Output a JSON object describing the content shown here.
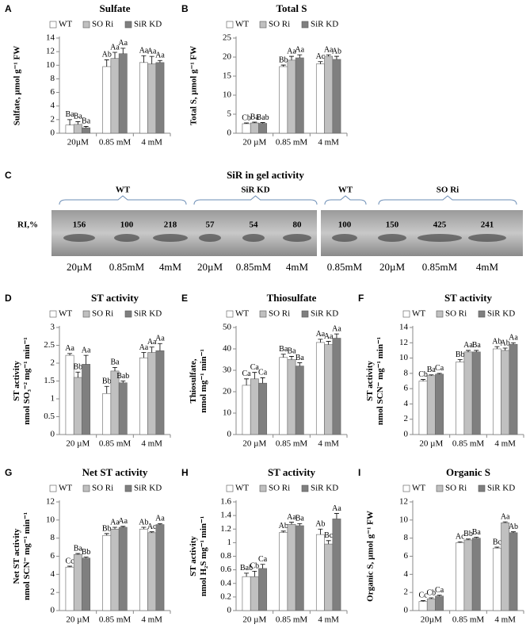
{
  "chart_data": [
    {
      "type": "bar",
      "panel": "A",
      "title": "Sulfate",
      "ylabel": "Sulfate, µmol g⁻¹ FW",
      "categories": [
        "20µM",
        "0.85 mM",
        "4 mM"
      ],
      "ylim": [
        0,
        14
      ],
      "yticks": [
        0,
        2,
        4,
        6,
        8,
        10,
        12,
        14
      ],
      "series": [
        {
          "name": "WT",
          "color": "#ffffff",
          "values": [
            1.2,
            9.8,
            10.4
          ],
          "errors": [
            0.8,
            1.0,
            1.0
          ],
          "letters": [
            "Ba",
            "Ab",
            "Aa"
          ]
        },
        {
          "name": "SO Ri",
          "color": "#c0c0c0",
          "values": [
            1.3,
            11.0,
            10.2
          ],
          "errors": [
            0.4,
            0.9,
            1.1
          ],
          "letters": [
            "Ba",
            "Aa",
            "Aa"
          ]
        },
        {
          "name": "SiR KD",
          "color": "#7f7f7f",
          "values": [
            0.8,
            11.7,
            10.4
          ],
          "errors": [
            0.2,
            0.8,
            0.3
          ],
          "letters": [
            "Ba",
            "Aa",
            "Aa"
          ]
        }
      ]
    },
    {
      "type": "bar",
      "panel": "B",
      "title": "Total S",
      "ylabel": "Total S, µmol g⁻¹ FW",
      "categories": [
        "20 µM",
        "0.85 mM",
        "4 mM"
      ],
      "ylim": [
        0,
        25
      ],
      "yticks": [
        0,
        5,
        10,
        15,
        20,
        25
      ],
      "series": [
        {
          "name": "WT",
          "color": "#ffffff",
          "values": [
            2.5,
            17.5,
            18.2
          ],
          "errors": [
            0.2,
            0.4,
            0.6
          ],
          "letters": [
            "Cb",
            "Bb",
            "Ac"
          ]
        },
        {
          "name": "SO Ri",
          "color": "#c0c0c0",
          "values": [
            2.7,
            19.2,
            20.2
          ],
          "errors": [
            0.2,
            1.0,
            0.4
          ],
          "letters": [
            "Ba",
            "Aa",
            "Aa"
          ]
        },
        {
          "name": "SiR KD",
          "color": "#7f7f7f",
          "values": [
            2.6,
            19.8,
            19.4
          ],
          "errors": [
            0.2,
            0.8,
            0.8
          ],
          "letters": [
            "Bab",
            "Aa",
            "Ab"
          ]
        }
      ]
    },
    {
      "type": "bar",
      "panel": "D",
      "title": "ST activity",
      "ylabel": [
        "ST activity",
        "nmol SO₃⁻² mg⁻¹ min⁻¹"
      ],
      "categories": [
        "20 µM",
        "0.85 mM",
        "4 mM"
      ],
      "ylim": [
        0,
        3
      ],
      "yticks": [
        0,
        0.5,
        1,
        1.5,
        2,
        2.5,
        3
      ],
      "series": [
        {
          "name": "WT",
          "color": "#ffffff",
          "values": [
            2.22,
            1.15,
            2.15
          ],
          "errors": [
            0.05,
            0.2,
            0.15
          ],
          "letters": [
            "Aa",
            "Bb",
            "Aa"
          ]
        },
        {
          "name": "SO Ri",
          "color": "#c0c0c0",
          "values": [
            1.6,
            1.78,
            2.3
          ],
          "errors": [
            0.15,
            0.1,
            0.15
          ],
          "letters": [
            "Bb",
            "Ba",
            "Aa"
          ]
        },
        {
          "name": "SiR KD",
          "color": "#7f7f7f",
          "values": [
            1.97,
            1.45,
            2.35
          ],
          "errors": [
            0.25,
            0.05,
            0.2
          ],
          "letters": [
            "Aa",
            "Bab",
            "Aa"
          ]
        }
      ]
    },
    {
      "type": "bar",
      "panel": "E",
      "title": "Thiosulfate",
      "ylabel": [
        "Thiosulfate,",
        "nmol mg⁻¹ min⁻¹"
      ],
      "categories": [
        "20 µM",
        "0.85 mM",
        "4 mM"
      ],
      "ylim": [
        0,
        50
      ],
      "yticks": [
        0,
        10,
        20,
        30,
        40,
        50
      ],
      "series": [
        {
          "name": "WT",
          "color": "#ffffff",
          "values": [
            23,
            36,
            43
          ],
          "errors": [
            3,
            1.5,
            1.5
          ],
          "letters": [
            "Ca",
            "Ba",
            "Aa"
          ]
        },
        {
          "name": "SO Ri",
          "color": "#c0c0c0",
          "values": [
            26,
            35,
            42
          ],
          "errors": [
            3,
            1.5,
            1.5
          ],
          "letters": [
            "Ca",
            "Ba",
            "Aa"
          ]
        },
        {
          "name": "SiR KD",
          "color": "#7f7f7f",
          "values": [
            24,
            32,
            45
          ],
          "errors": [
            2.5,
            1.5,
            2
          ],
          "letters": [
            "Ca",
            "Ba",
            "Aa"
          ]
        }
      ]
    },
    {
      "type": "bar",
      "panel": "F",
      "title": "ST activity",
      "ylabel": [
        "ST activity",
        "nmol SCN⁻ mg⁻¹ min⁻¹"
      ],
      "categories": [
        "20 µM",
        "0.85 mM",
        "4 mM"
      ],
      "ylim": [
        0,
        14
      ],
      "yticks": [
        0,
        2,
        4,
        6,
        8,
        10,
        12,
        14
      ],
      "series": [
        {
          "name": "WT",
          "color": "#ffffff",
          "values": [
            7.0,
            9.5,
            11.2
          ],
          "errors": [
            0.2,
            0.3,
            0.3
          ],
          "letters": [
            "Cb",
            "Bb",
            "Ab"
          ]
        },
        {
          "name": "SO Ri",
          "color": "#c0c0c0",
          "values": [
            7.7,
            10.8,
            11.0
          ],
          "errors": [
            0.1,
            0.2,
            0.3
          ],
          "letters": [
            "Ba",
            "Aa",
            "Ab"
          ]
        },
        {
          "name": "SiR KD",
          "color": "#7f7f7f",
          "values": [
            7.9,
            10.8,
            11.8
          ],
          "errors": [
            0.1,
            0.2,
            0.2
          ],
          "letters": [
            "Ca",
            "Ba",
            "Aa"
          ]
        }
      ]
    },
    {
      "type": "bar",
      "panel": "G",
      "title": "Net ST activity",
      "ylabel": [
        "Net ST activity",
        "nmol SCN⁻ mg⁻¹ min⁻¹"
      ],
      "categories": [
        "20 µM",
        "0.85 mM",
        "4 mM"
      ],
      "ylim": [
        0,
        12
      ],
      "yticks": [
        0,
        2,
        4,
        6,
        8,
        10,
        12
      ],
      "series": [
        {
          "name": "WT",
          "color": "#ffffff",
          "values": [
            4.8,
            8.3,
            9.0
          ],
          "errors": [
            0.1,
            0.2,
            0.2
          ],
          "letters": [
            "Cc",
            "Bb",
            "Ab"
          ]
        },
        {
          "name": "SO Ri",
          "color": "#c0c0c0",
          "values": [
            6.2,
            9.0,
            8.6
          ],
          "errors": [
            0.1,
            0.2,
            0.1
          ],
          "letters": [
            "Ba",
            "Aa",
            "Ac"
          ]
        },
        {
          "name": "SiR KD",
          "color": "#7f7f7f",
          "values": [
            5.8,
            9.2,
            9.5
          ],
          "errors": [
            0.1,
            0.1,
            0.1
          ],
          "letters": [
            "Bb",
            "Aa",
            "Aa"
          ]
        }
      ]
    },
    {
      "type": "bar",
      "panel": "H",
      "title": "ST activity",
      "ylabel": [
        "ST activity",
        "nmol H₂S mg⁻¹ min⁻¹"
      ],
      "categories": [
        "20 µM",
        "0.85 mM",
        "4 mM"
      ],
      "ylim": [
        0,
        1.6
      ],
      "yticks": [
        0,
        0.2,
        0.4,
        0.6,
        0.8,
        1,
        1.2,
        1.4,
        1.6
      ],
      "series": [
        {
          "name": "WT",
          "color": "#ffffff",
          "values": [
            0.5,
            1.15,
            1.12
          ],
          "errors": [
            0.05,
            0.02,
            0.08
          ],
          "letters": [
            "Bab",
            "Ab",
            "Ab"
          ]
        },
        {
          "name": "SO Ri",
          "color": "#c0c0c0",
          "values": [
            0.5,
            1.27,
            0.98
          ],
          "errors": [
            0.08,
            0.03,
            0.05
          ],
          "letters": [
            "Cb",
            "Aa",
            "Bc"
          ]
        },
        {
          "name": "SiR KD",
          "color": "#7f7f7f",
          "values": [
            0.62,
            1.25,
            1.35
          ],
          "errors": [
            0.06,
            0.03,
            0.08
          ],
          "letters": [
            "Ca",
            "Ba",
            "Aa"
          ]
        }
      ]
    },
    {
      "type": "bar",
      "panel": "I",
      "title": "Organic S",
      "ylabel": "Organic S, µmol g⁻¹ FW",
      "categories": [
        "20µM",
        "0.85 mM",
        "4 mM"
      ],
      "ylim": [
        0,
        12
      ],
      "yticks": [
        0,
        2,
        4,
        6,
        8,
        10,
        12
      ],
      "series": [
        {
          "name": "WT",
          "color": "#ffffff",
          "values": [
            1.0,
            7.5,
            6.9
          ],
          "errors": [
            0.1,
            0.1,
            0.1
          ],
          "letters": [
            "Cc",
            "Ac",
            "Bc"
          ]
        },
        {
          "name": "SO Ri",
          "color": "#c0c0c0",
          "values": [
            1.3,
            7.8,
            9.7
          ],
          "errors": [
            0.1,
            0.1,
            0.1
          ],
          "letters": [
            "Cb",
            "Bb",
            "Aa"
          ]
        },
        {
          "name": "SiR KD",
          "color": "#7f7f7f",
          "values": [
            1.6,
            8.0,
            8.6
          ],
          "errors": [
            0.1,
            0.1,
            0.1
          ],
          "letters": [
            "Ca",
            "Ba",
            "Ab"
          ]
        }
      ]
    }
  ],
  "gel": {
    "panel": "C",
    "title": "SiR in gel activity",
    "ri_label": "RI,%",
    "groups": [
      "WT",
      "SiR KD",
      "WT",
      "SO Ri"
    ],
    "ri": [
      "156",
      "100",
      "218",
      "57",
      "54",
      "80",
      "100",
      "150",
      "425",
      "241"
    ],
    "lanes": [
      "20µM",
      "0.85mM",
      "4mM",
      "20µM",
      "0.85mM",
      "4mM",
      "0.85mM",
      "20µM",
      "0.85mM",
      "4mM"
    ]
  }
}
